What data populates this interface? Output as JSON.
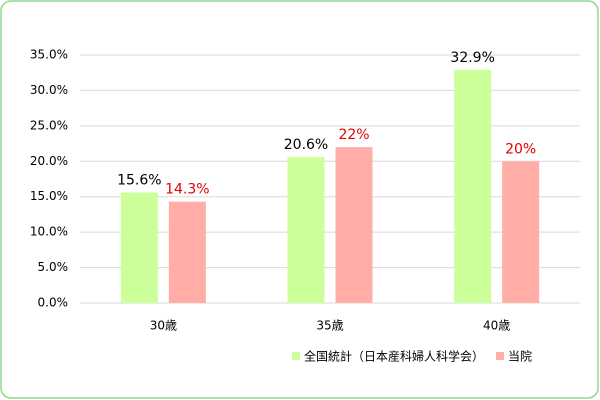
{
  "chart_data": {
    "type": "bar",
    "categories": [
      "30歳",
      "35歳",
      "40歳"
    ],
    "series": [
      {
        "name": "全国統計（日本産科婦人科学会）",
        "color": "#ccff99",
        "label_color": "#000000",
        "values": [
          15.6,
          20.6,
          32.9
        ],
        "value_labels": [
          "15.6%",
          "20.6%",
          "32.9%"
        ]
      },
      {
        "name": "当院",
        "color": "#ffada6",
        "label_color": "#e60000",
        "values": [
          14.3,
          22,
          20
        ],
        "value_labels": [
          "14.3%",
          "22%",
          "20%"
        ]
      }
    ],
    "ylim": [
      0,
      35
    ],
    "yticks": [
      {
        "value": 0,
        "label": "0.0%"
      },
      {
        "value": 5,
        "label": "5.0%"
      },
      {
        "value": 10,
        "label": "10.0%"
      },
      {
        "value": 15,
        "label": "15.0%"
      },
      {
        "value": 20,
        "label": "20.0%"
      },
      {
        "value": 25,
        "label": "25.0%"
      },
      {
        "value": 30,
        "label": "30.0%"
      },
      {
        "value": 35,
        "label": "35.0%"
      }
    ],
    "grid": true
  }
}
